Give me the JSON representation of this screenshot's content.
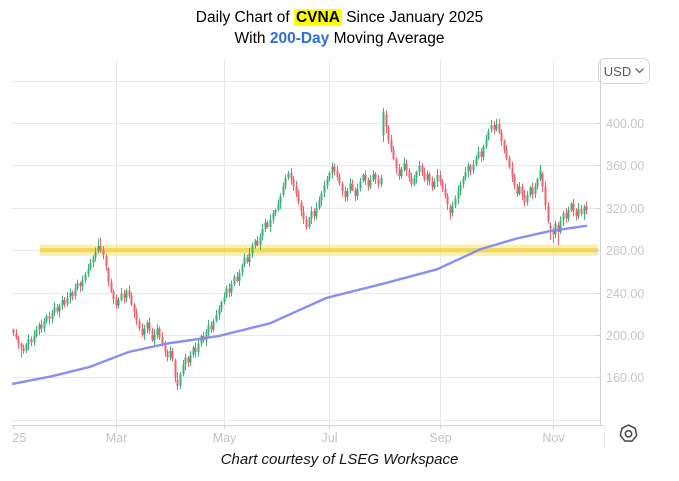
{
  "title": {
    "prefix": "Daily Chart of ",
    "ticker": "CVNA",
    "suffix": " Since January 2025"
  },
  "subtitle": {
    "prefix": "With ",
    "highlight": "200-Day",
    "suffix": " Moving Average"
  },
  "currency_selector": {
    "label": "USD",
    "icon": "chevron-down-icon"
  },
  "caption": "Chart courtesy of LSEG Workspace",
  "chart_data": {
    "type": "candlestick",
    "symbol": "CVNA",
    "overlay": "200-Day Moving Average",
    "period_label": "Since January 2025",
    "x_axis": {
      "note": "day = trading-day index from first session of 2025",
      "labels": [
        {
          "text": "25",
          "day": 0
        },
        {
          "text": "Mar",
          "day": 40
        },
        {
          "text": "May",
          "day": 82
        },
        {
          "text": "Jul",
          "day": 123
        },
        {
          "text": "Sep",
          "day": 166
        },
        {
          "text": "Nov",
          "day": 210
        }
      ]
    },
    "y_axis": {
      "currency": "USD",
      "tick_prices": [
        400,
        360,
        320,
        280,
        240,
        200,
        160
      ],
      "gridline_prices": [
        440,
        400,
        360,
        320,
        280,
        240,
        200,
        160,
        120
      ],
      "label_format": "0.00"
    },
    "support_band": {
      "price_top": 285.5,
      "price_bottom": 274.5,
      "core_top": 282,
      "core_bottom": 278,
      "start_day": 10.5
    },
    "series": {
      "first_open": 205,
      "closes": [
        202,
        197,
        192,
        188,
        185,
        191,
        196,
        193,
        199,
        205,
        210,
        206,
        213,
        218,
        215,
        221,
        226,
        222,
        228,
        233,
        229,
        235,
        240,
        237,
        244,
        249,
        246,
        252,
        257,
        262,
        268,
        273,
        278,
        284,
        280,
        276,
        265,
        250,
        241,
        234,
        228,
        233,
        239,
        235,
        242,
        237,
        229,
        221,
        213,
        206,
        200,
        206,
        212,
        204,
        195,
        200,
        206,
        198,
        191,
        185,
        179,
        185,
        177,
        160,
        152,
        163,
        172,
        179,
        174,
        181,
        188,
        184,
        192,
        199,
        195,
        203,
        209,
        205,
        213,
        219,
        225,
        231,
        236,
        244,
        240,
        248,
        255,
        251,
        259,
        266,
        273,
        269,
        277,
        284,
        289,
        285,
        293,
        300,
        306,
        302,
        309,
        315,
        318,
        324,
        331,
        340,
        348,
        353,
        347,
        340,
        333,
        325,
        317,
        309,
        302,
        310,
        317,
        312,
        320,
        327,
        334,
        341,
        347,
        353,
        359,
        355,
        349,
        343,
        336,
        330,
        336,
        343,
        337,
        331,
        338,
        345,
        351,
        346,
        340,
        346,
        352,
        347,
        342,
        348,
        411,
        396,
        384,
        375,
        366,
        357,
        350,
        356,
        362,
        355,
        348,
        342,
        348,
        354,
        360,
        353,
        346,
        352,
        345,
        339,
        345,
        351,
        345,
        338,
        331,
        323,
        315,
        322,
        329,
        336,
        342,
        348,
        354,
        360,
        355,
        361,
        367,
        373,
        368,
        378,
        385,
        392,
        398,
        393,
        399,
        391,
        383,
        375,
        367,
        358,
        349,
        341,
        333,
        340,
        332,
        325,
        332,
        339,
        333,
        340,
        347,
        356,
        340,
        322,
        308,
        300,
        295,
        305,
        297,
        308,
        315,
        310,
        318,
        324,
        317,
        312,
        319,
        314,
        321,
        318
      ],
      "ohlc_overrides": {
        "3": [
          192,
          193,
          179,
          188
        ],
        "33": [
          279,
          291,
          277,
          284
        ],
        "34": [
          284,
          292,
          278,
          280
        ],
        "36": [
          274,
          276,
          261,
          265
        ],
        "37": [
          263,
          264,
          246,
          250
        ],
        "63": [
          176,
          178,
          155,
          160
        ],
        "64": [
          158,
          165,
          148,
          152
        ],
        "105": [
          332,
          344,
          330,
          340
        ],
        "144": [
          388,
          414,
          382,
          411
        ],
        "145": [
          408,
          412,
          390,
          396
        ],
        "170": [
          321,
          323,
          309,
          315
        ],
        "186": [
          394,
          403,
          391,
          398
        ],
        "188": [
          394,
          404,
          392,
          399
        ],
        "206": [
          352,
          354,
          335,
          340
        ],
        "209": [
          303,
          306,
          290,
          300
        ],
        "210": [
          298,
          301,
          287,
          295
        ],
        "212": [
          304,
          306,
          285,
          297
        ]
      },
      "wick_gen": {
        "base": 1.2,
        "amp": 4.3
      },
      "ma200_anchors": [
        [
          0,
          154
        ],
        [
          15,
          161
        ],
        [
          30,
          170
        ],
        [
          45,
          184
        ],
        [
          60,
          192
        ],
        [
          80,
          199
        ],
        [
          100,
          211
        ],
        [
          122,
          235
        ],
        [
          145,
          249
        ],
        [
          165,
          262
        ],
        [
          182,
          281
        ],
        [
          196,
          291
        ],
        [
          209,
          298
        ],
        [
          223,
          303
        ]
      ]
    },
    "colors": {
      "up": "#3cb27b",
      "down": "#f0616d",
      "ma": "#8289f0",
      "grid": "#e9e9e9",
      "axis": "#d2d2d2",
      "tick": "#c2c2c2",
      "label": "#c6c6c6",
      "band_fill": "rgba(247,226,118,0.55)",
      "band_core": "rgba(240,211,70,0.8)",
      "title_highlight_bg": "#ffff00",
      "subtitle_highlight": "#2f6fd4"
    }
  }
}
